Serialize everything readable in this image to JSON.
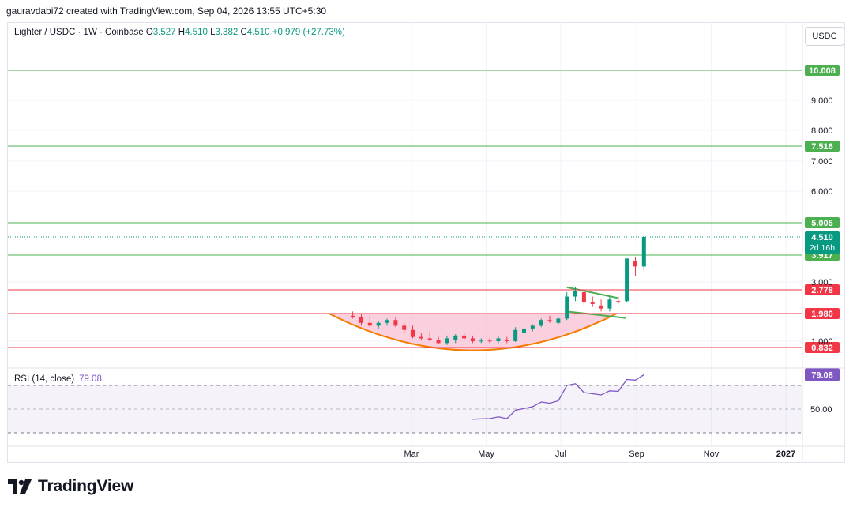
{
  "header": {
    "attribution": "gauravdabi72 created with TradingView.com, Sep 04, 2026 13:55 UTC+5:30"
  },
  "legend": {
    "symbol": "Lighter / USDC · 1W · Coinbase",
    "o_label": "O",
    "o_value": "3.527",
    "h_label": "H",
    "h_value": "4.510",
    "l_label": "L",
    "l_value": "3.382",
    "c_label": "C",
    "c_value": "4.510",
    "change": "+0.979 (+27.73%)"
  },
  "currency_button": "USDC",
  "rsi": {
    "label": "RSI (14, close)",
    "value": "79.08",
    "badge": "79.08",
    "level_label": "50.00"
  },
  "footer": {
    "brand": "TradingView"
  },
  "colors": {
    "up": "#089981",
    "down": "#f23645",
    "support": "#f23645",
    "resistance": "#4caf50",
    "rsi": "#7e57c2",
    "bowl": "#f57c00",
    "flag": "#4caf50"
  },
  "chart_data": {
    "type": "candlestick",
    "symbol": "Lighter / USDC",
    "interval": "1W",
    "exchange": "Coinbase",
    "y_ticks": [
      "10.008",
      "9.000",
      "8.000",
      "7.516",
      "7.000",
      "6.000",
      "5.005",
      "4.510",
      "3.917",
      "3.000",
      "2.778",
      "1.980",
      "1.000",
      "0.832"
    ],
    "y_tick_values": [
      10.008,
      9.0,
      8.0,
      7.516,
      7.0,
      6.0,
      5.005,
      4.51,
      3.917,
      3.0,
      2.778,
      1.98,
      1.0,
      0.832
    ],
    "x_ticks": [
      "Mar",
      "May",
      "Jul",
      "Sep",
      "Nov",
      "2027"
    ],
    "x_tick_dates": [
      "2026-03-01",
      "2026-05-01",
      "2026-07-01",
      "2026-09-01",
      "2026-11-01",
      "2027-01-01"
    ],
    "horizontal_levels": [
      {
        "value": 10.008,
        "label": "10.008",
        "kind": "resistance"
      },
      {
        "value": 7.516,
        "label": "7.516",
        "kind": "resistance"
      },
      {
        "value": 5.005,
        "label": "5.005",
        "kind": "resistance"
      },
      {
        "value": 3.917,
        "label": "3.917",
        "kind": "resistance"
      },
      {
        "value": 2.778,
        "label": "2.778",
        "kind": "support"
      },
      {
        "value": 1.98,
        "label": "1.980",
        "kind": "support"
      },
      {
        "value": 0.832,
        "label": "0.832",
        "kind": "support"
      }
    ],
    "last_price": {
      "value": 4.51,
      "label": "4.510",
      "countdown": "2d 16h"
    },
    "candles": [
      {
        "date": "2026-01-12",
        "o": 1.9,
        "h": 2.05,
        "l": 1.8,
        "c": 1.85
      },
      {
        "date": "2026-01-19",
        "o": 1.85,
        "h": 1.95,
        "l": 1.55,
        "c": 1.65
      },
      {
        "date": "2026-01-26",
        "o": 1.65,
        "h": 1.9,
        "l": 1.5,
        "c": 1.55
      },
      {
        "date": "2026-02-02",
        "o": 1.55,
        "h": 1.7,
        "l": 1.45,
        "c": 1.65
      },
      {
        "date": "2026-02-09",
        "o": 1.65,
        "h": 1.8,
        "l": 1.55,
        "c": 1.75
      },
      {
        "date": "2026-02-16",
        "o": 1.75,
        "h": 1.85,
        "l": 1.5,
        "c": 1.55
      },
      {
        "date": "2026-02-23",
        "o": 1.55,
        "h": 1.65,
        "l": 1.3,
        "c": 1.4
      },
      {
        "date": "2026-03-02",
        "o": 1.4,
        "h": 1.55,
        "l": 1.1,
        "c": 1.15
      },
      {
        "date": "2026-03-09",
        "o": 1.15,
        "h": 1.3,
        "l": 1.05,
        "c": 1.1
      },
      {
        "date": "2026-03-16",
        "o": 1.1,
        "h": 1.35,
        "l": 1.0,
        "c": 1.05
      },
      {
        "date": "2026-03-23",
        "o": 1.05,
        "h": 1.15,
        "l": 0.92,
        "c": 0.95
      },
      {
        "date": "2026-03-30",
        "o": 0.95,
        "h": 1.2,
        "l": 0.9,
        "c": 1.1
      },
      {
        "date": "2026-04-06",
        "o": 1.05,
        "h": 1.25,
        "l": 0.95,
        "c": 1.2
      },
      {
        "date": "2026-04-13",
        "o": 1.2,
        "h": 1.3,
        "l": 1.05,
        "c": 1.1
      },
      {
        "date": "2026-04-20",
        "o": 1.1,
        "h": 1.2,
        "l": 0.95,
        "c": 1.0
      },
      {
        "date": "2026-04-27",
        "o": 1.0,
        "h": 1.1,
        "l": 0.95,
        "c": 1.02
      },
      {
        "date": "2026-05-04",
        "o": 1.02,
        "h": 1.1,
        "l": 0.95,
        "c": 1.0
      },
      {
        "date": "2026-05-11",
        "o": 1.0,
        "h": 1.2,
        "l": 0.95,
        "c": 1.1
      },
      {
        "date": "2026-05-18",
        "o": 1.05,
        "h": 1.15,
        "l": 0.95,
        "c": 1.0
      },
      {
        "date": "2026-05-25",
        "o": 1.0,
        "h": 1.5,
        "l": 0.98,
        "c": 1.4
      },
      {
        "date": "2026-06-01",
        "o": 1.3,
        "h": 1.5,
        "l": 1.2,
        "c": 1.45
      },
      {
        "date": "2026-06-08",
        "o": 1.45,
        "h": 1.6,
        "l": 1.35,
        "c": 1.55
      },
      {
        "date": "2026-06-15",
        "o": 1.55,
        "h": 1.8,
        "l": 1.5,
        "c": 1.75
      },
      {
        "date": "2026-06-22",
        "o": 1.75,
        "h": 1.9,
        "l": 1.65,
        "c": 1.7
      },
      {
        "date": "2026-06-29",
        "o": 1.65,
        "h": 1.85,
        "l": 1.6,
        "c": 1.8
      },
      {
        "date": "2026-07-06",
        "o": 1.8,
        "h": 2.7,
        "l": 1.75,
        "c": 2.55
      },
      {
        "date": "2026-07-13",
        "o": 2.55,
        "h": 2.85,
        "l": 2.4,
        "c": 2.75
      },
      {
        "date": "2026-07-20",
        "o": 2.7,
        "h": 2.8,
        "l": 2.25,
        "c": 2.35
      },
      {
        "date": "2026-07-27",
        "o": 2.35,
        "h": 2.55,
        "l": 2.2,
        "c": 2.3
      },
      {
        "date": "2026-08-03",
        "o": 2.25,
        "h": 2.45,
        "l": 2.05,
        "c": 2.15
      },
      {
        "date": "2026-08-10",
        "o": 2.15,
        "h": 2.55,
        "l": 2.05,
        "c": 2.45
      },
      {
        "date": "2026-08-17",
        "o": 2.4,
        "h": 2.55,
        "l": 2.3,
        "c": 2.35
      },
      {
        "date": "2026-08-24",
        "o": 2.4,
        "h": 3.8,
        "l": 2.35,
        "c": 3.8
      },
      {
        "date": "2026-08-31",
        "o": 3.7,
        "h": 3.85,
        "l": 3.2,
        "c": 3.53
      },
      {
        "date": "2026-09-07",
        "o": 3.527,
        "h": 4.51,
        "l": 3.382,
        "c": 4.51
      }
    ],
    "rsi": {
      "period": 14,
      "level": 50,
      "current": 79.08,
      "values": [
        {
          "date": "2026-04-20",
          "v": 41.5
        },
        {
          "date": "2026-04-27",
          "v": 41.8
        },
        {
          "date": "2026-05-04",
          "v": 42.0
        },
        {
          "date": "2026-05-11",
          "v": 43.5
        },
        {
          "date": "2026-05-18",
          "v": 42.0
        },
        {
          "date": "2026-05-25",
          "v": 49.0
        },
        {
          "date": "2026-06-01",
          "v": 50.5
        },
        {
          "date": "2026-06-08",
          "v": 52.0
        },
        {
          "date": "2026-06-15",
          "v": 56.0
        },
        {
          "date": "2026-06-22",
          "v": 55.0
        },
        {
          "date": "2026-06-29",
          "v": 57.0
        },
        {
          "date": "2026-07-06",
          "v": 70.0
        },
        {
          "date": "2026-07-13",
          "v": 71.5
        },
        {
          "date": "2026-07-20",
          "v": 64.0
        },
        {
          "date": "2026-07-27",
          "v": 63.0
        },
        {
          "date": "2026-08-03",
          "v": 62.0
        },
        {
          "date": "2026-08-10",
          "v": 65.5
        },
        {
          "date": "2026-08-17",
          "v": 65.0
        },
        {
          "date": "2026-08-24",
          "v": 75.0
        },
        {
          "date": "2026-08-31",
          "v": 74.5
        },
        {
          "date": "2026-09-07",
          "v": 79.08
        }
      ]
    },
    "drawings": {
      "rounding_bottom": {
        "from": "2026-01-12",
        "to": "2026-08-17",
        "top": 1.98,
        "bottom": 0.87
      },
      "bull_flag": {
        "upper": [
          [
            "2026-07-06",
            2.85
          ],
          [
            "2026-08-17",
            2.5
          ]
        ],
        "lower": [
          [
            "2026-07-06",
            2.05
          ],
          [
            "2026-08-17",
            1.82
          ]
        ]
      }
    },
    "legend_position": "top-left"
  }
}
